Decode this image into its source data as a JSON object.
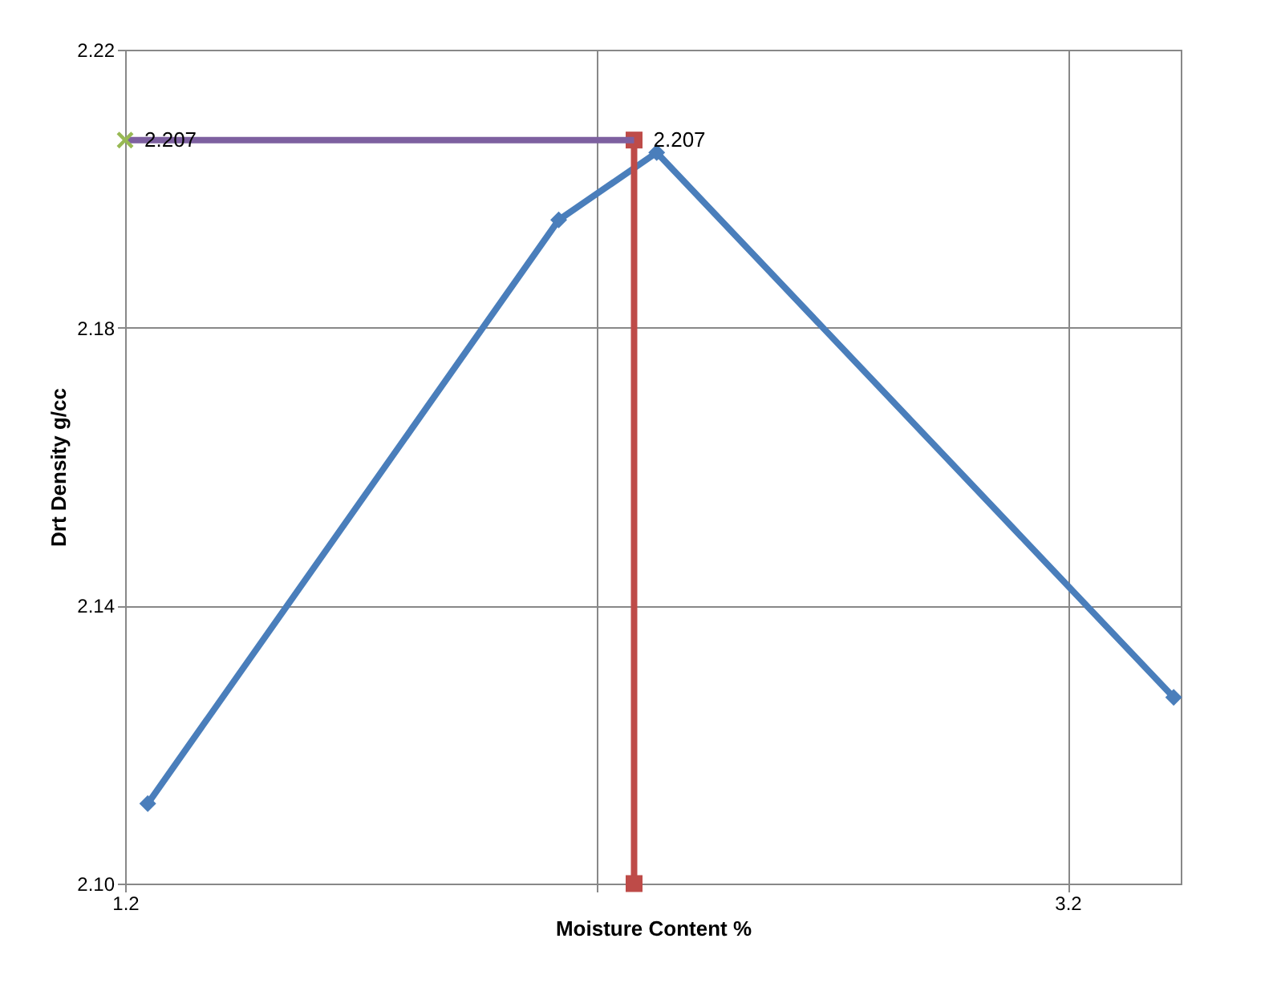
{
  "chart_data": {
    "type": "line",
    "xlabel": "Moisture Content %",
    "ylabel": "Drt Density g/cc",
    "xlim": [
      1.2,
      3.44
    ],
    "xticks": [
      1.2,
      {
        "value": 2.2,
        "label": null
      },
      3.2
    ],
    "ylim": [
      2.1,
      2.22
    ],
    "yticks": [
      {
        "value": 2.1,
        "label": "2.10"
      },
      {
        "value": 2.14,
        "label": "2.14"
      },
      {
        "value": 2.18,
        "label": "2.18"
      },
      {
        "value": 2.22,
        "label": "2.22"
      }
    ],
    "grid": true,
    "series": [
      {
        "color": "#4a7ebb",
        "marker": "diamond",
        "x": [
          1.248,
          2.12,
          2.328,
          3.425
        ],
        "values": [
          2.1115,
          2.1955,
          2.2052,
          2.1268
        ]
      },
      {
        "type": "line",
        "color": "#be4b48",
        "marker": "square",
        "x": [
          2.28,
          2.28
        ],
        "values": [
          2.1,
          2.207
        ]
      },
      {
        "type": "line",
        "color": "#7d60a0",
        "marker": "none",
        "x": [
          1.2,
          2.28
        ],
        "values": [
          2.207,
          2.207
        ]
      },
      {
        "type": "scatter",
        "color": "#98b954",
        "marker": "cross",
        "x": [
          1.2
        ],
        "values": [
          2.207
        ]
      }
    ],
    "annotations": [
      {
        "text": "2.207",
        "x": 1.2,
        "y": 2.207
      },
      {
        "text": "2.207",
        "x": 2.28,
        "y": 2.207
      }
    ]
  }
}
